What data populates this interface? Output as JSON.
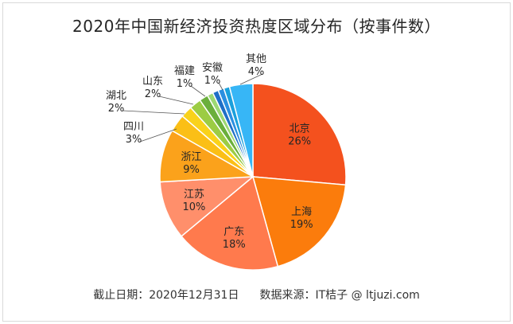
{
  "title": "2020年中国新经济投资热度区域分布（按事件数）",
  "footer": {
    "date_label": "截止日期：2020年12月31日",
    "source_label": "数据来源：IT桔子 @ ltjuzi.com"
  },
  "chart_data": {
    "type": "pie",
    "unit": "%",
    "slices": [
      {
        "label": "北京",
        "value": 26,
        "display": "26%",
        "color": "#f4511e"
      },
      {
        "label": "上海",
        "value": 19,
        "display": "19%",
        "color": "#fb7c0c"
      },
      {
        "label": "广东",
        "value": 18,
        "display": "18%",
        "color": "#ff7a4d"
      },
      {
        "label": "江苏",
        "value": 10,
        "display": "10%",
        "color": "#ff8f6b"
      },
      {
        "label": "浙江",
        "value": 9,
        "display": "9%",
        "color": "#fba21b"
      },
      {
        "label": "四川",
        "value": 3,
        "display": "3%",
        "color": "#fbbf16"
      },
      {
        "label": "湖北",
        "value": 2,
        "display": "2%",
        "color": "#f9d21b"
      },
      {
        "label": "山东",
        "value": 2,
        "display": "2%",
        "color": "#9ccc44"
      },
      {
        "label": "",
        "value": 1.5,
        "display": "",
        "color": "#6aaf3b"
      },
      {
        "label": "福建",
        "value": 1,
        "display": "1%",
        "color": "#9cd873"
      },
      {
        "label": "",
        "value": 1,
        "display": "",
        "color": "#1f6fc7"
      },
      {
        "label": "安徽",
        "value": 1,
        "display": "1%",
        "color": "#2b8fe0"
      },
      {
        "label": "",
        "value": 1,
        "display": "",
        "color": "#1aa0dc"
      },
      {
        "label": "其他",
        "value": 4,
        "display": "4%",
        "color": "#37b6f6"
      }
    ]
  }
}
